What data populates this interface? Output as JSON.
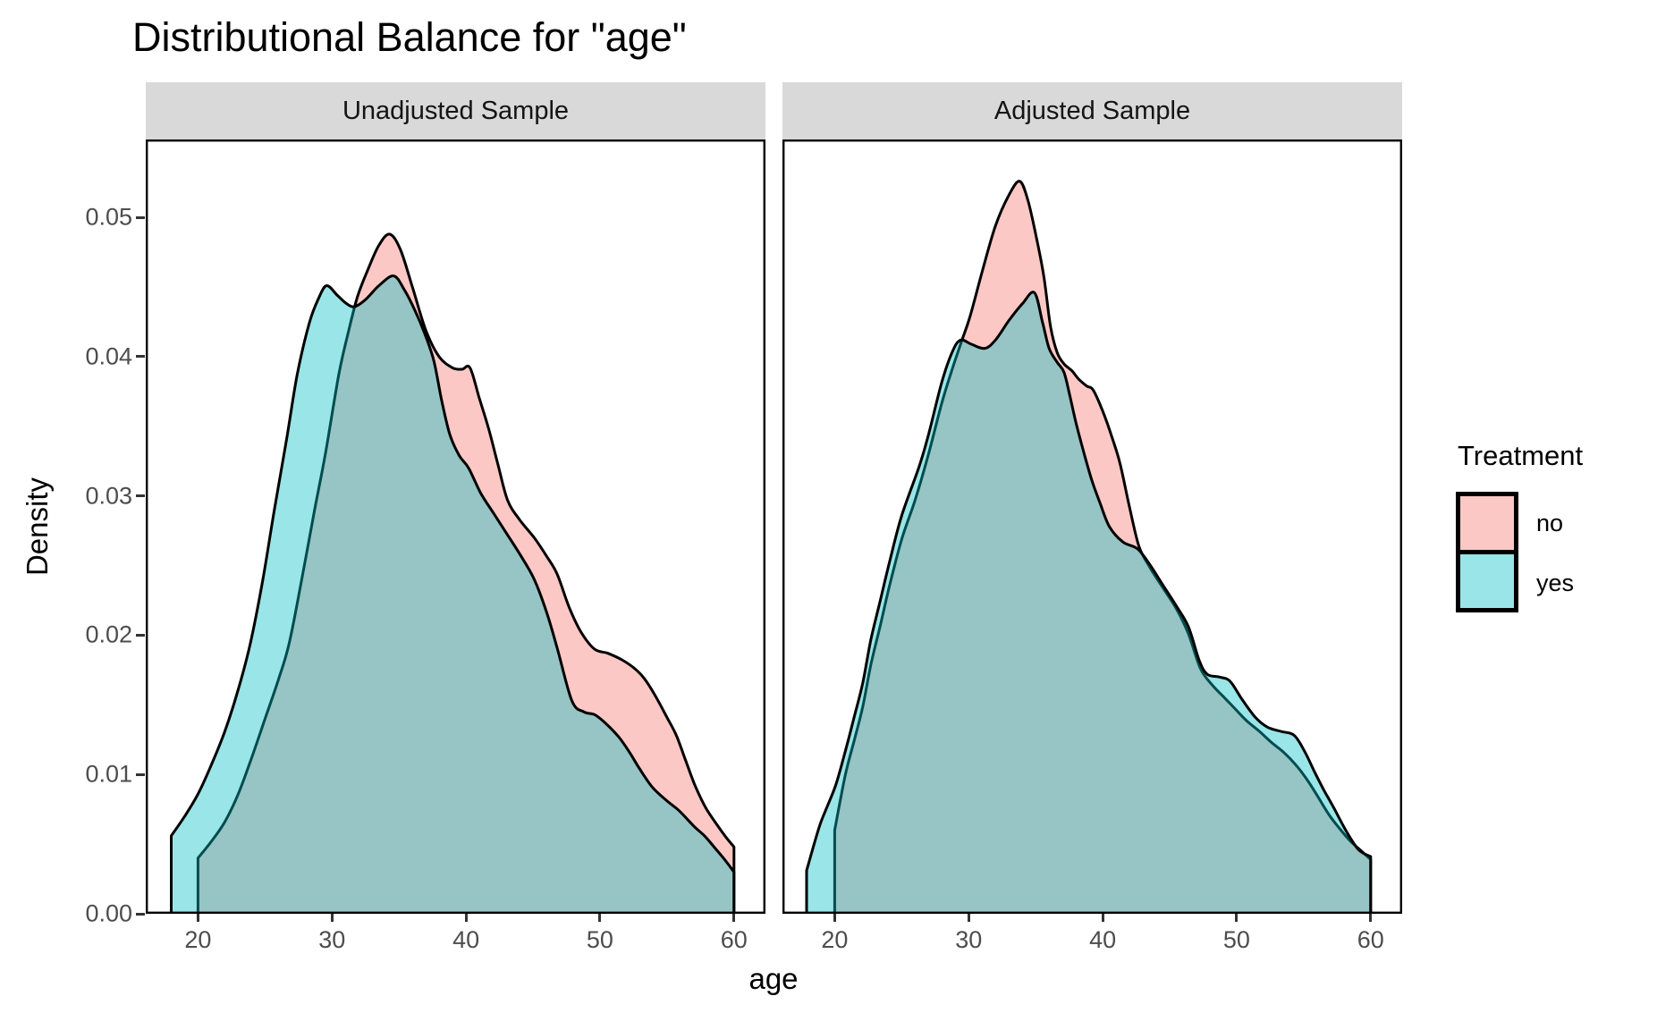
{
  "title": "Distributional Balance for \"age\"",
  "axes": {
    "x_label": "age",
    "y_label": "Density"
  },
  "legend": {
    "title": "Treatment",
    "items": [
      {
        "label": "no",
        "color": "#F8766D"
      },
      {
        "label": "yes",
        "color": "#00BFC4"
      }
    ]
  },
  "style": {
    "stroke_color": "#000000",
    "fill_alpha": 0.4,
    "strip_background": "#D9D9D9",
    "tick_text_color": "#4D4D4D",
    "panel_border_color": "#000000"
  },
  "chart_data": {
    "type": "area",
    "title": "Distributional Balance for \"age\"",
    "xlabel": "age",
    "ylabel": "Density",
    "grid": "off",
    "legend_position": "right",
    "xlim": [
      16.1,
      62.35
    ],
    "ylim": [
      0,
      0.0556
    ],
    "x_ticks": [
      20,
      30,
      40,
      50,
      60
    ],
    "y_ticks": [
      0,
      0.01,
      0.02,
      0.03,
      0.04,
      0.05
    ],
    "y_tick_labels": [
      "0.00",
      "0.01",
      "0.02",
      "0.03",
      "0.04",
      "0.05"
    ],
    "facets": [
      {
        "label": "Unadjusted Sample",
        "series": [
          {
            "name": "no",
            "color": "#F8766D",
            "points": [
              [
                20,
                0.004
              ],
              [
                21,
                0.0052
              ],
              [
                22,
                0.0066
              ],
              [
                23,
                0.0086
              ],
              [
                24,
                0.0112
              ],
              [
                25,
                0.014
              ],
              [
                26,
                0.0168
              ],
              [
                26.8,
                0.0194
              ],
              [
                27.7,
                0.0238
              ],
              [
                28.7,
                0.029
              ],
              [
                29.5,
                0.033
              ],
              [
                30.5,
                0.0387
              ],
              [
                31.2,
                0.0417
              ],
              [
                31.9,
                0.0443
              ],
              [
                32.7,
                0.0463
              ],
              [
                33.5,
                0.048
              ],
              [
                34.3,
                0.0488
              ],
              [
                35.1,
                0.0477
              ],
              [
                36,
                0.045
              ],
              [
                37,
                0.0419
              ],
              [
                38,
                0.04
              ],
              [
                39,
                0.0392
              ],
              [
                39.7,
                0.0391
              ],
              [
                40.3,
                0.0392
              ],
              [
                41,
                0.037
              ],
              [
                41.7,
                0.0348
              ],
              [
                42.4,
                0.0322
              ],
              [
                43.1,
                0.0297
              ],
              [
                44,
                0.0283
              ],
              [
                45.1,
                0.027
              ],
              [
                46,
                0.0257
              ],
              [
                46.8,
                0.0244
              ],
              [
                47.7,
                0.022
              ],
              [
                48.6,
                0.0202
              ],
              [
                49.6,
                0.019
              ],
              [
                50.6,
                0.0187
              ],
              [
                51.7,
                0.0182
              ],
              [
                52.6,
                0.0176
              ],
              [
                53.3,
                0.0169
              ],
              [
                54.1,
                0.0157
              ],
              [
                55,
                0.0141
              ],
              [
                55.7,
                0.0128
              ],
              [
                56.4,
                0.011
              ],
              [
                57.1,
                0.0092
              ],
              [
                57.9,
                0.0076
              ],
              [
                58.8,
                0.0063
              ],
              [
                59.4,
                0.0055
              ],
              [
                60,
                0.0048
              ]
            ]
          },
          {
            "name": "yes",
            "color": "#00BFC4",
            "points": [
              [
                18,
                0.0056
              ],
              [
                19,
                0.007
              ],
              [
                20,
                0.0086
              ],
              [
                21,
                0.0107
              ],
              [
                22,
                0.0131
              ],
              [
                23,
                0.0161
              ],
              [
                23.9,
                0.0194
              ],
              [
                24.8,
                0.0238
              ],
              [
                25.7,
                0.029
              ],
              [
                26.6,
                0.034
              ],
              [
                27.4,
                0.0387
              ],
              [
                28.3,
                0.0424
              ],
              [
                29,
                0.0442
              ],
              [
                29.6,
                0.0451
              ],
              [
                30.4,
                0.0444
              ],
              [
                31.1,
                0.0438
              ],
              [
                31.7,
                0.0436
              ],
              [
                32.5,
                0.0441
              ],
              [
                33.5,
                0.0451
              ],
              [
                34.6,
                0.0458
              ],
              [
                35.4,
                0.0448
              ],
              [
                36.2,
                0.0433
              ],
              [
                36.9,
                0.0417
              ],
              [
                37.6,
                0.0397
              ],
              [
                38.2,
                0.0368
              ],
              [
                38.8,
                0.0344
              ],
              [
                39.5,
                0.0329
              ],
              [
                40.2,
                0.032
              ],
              [
                41.1,
                0.0302
              ],
              [
                42.1,
                0.0287
              ],
              [
                43.1,
                0.0272
              ],
              [
                44.1,
                0.0257
              ],
              [
                45.1,
                0.024
              ],
              [
                46,
                0.0217
              ],
              [
                46.8,
                0.0191
              ],
              [
                47.9,
                0.0153
              ],
              [
                48.8,
                0.0145
              ],
              [
                49.6,
                0.0143
              ],
              [
                50.4,
                0.0137
              ],
              [
                51.4,
                0.0127
              ],
              [
                52.2,
                0.0116
              ],
              [
                52.9,
                0.0105
              ],
              [
                53.9,
                0.0091
              ],
              [
                55,
                0.0081
              ],
              [
                55.9,
                0.0074
              ],
              [
                57,
                0.0063
              ],
              [
                57.8,
                0.0056
              ],
              [
                58.6,
                0.0047
              ],
              [
                59.3,
                0.0039
              ],
              [
                60,
                0.003
              ]
            ]
          }
        ]
      },
      {
        "label": "Adjusted Sample",
        "series": [
          {
            "name": "no",
            "color": "#F8766D",
            "points": [
              [
                20,
                0.006
              ],
              [
                20.8,
                0.01
              ],
              [
                21.5,
                0.0126
              ],
              [
                22.1,
                0.0149
              ],
              [
                22.7,
                0.0179
              ],
              [
                23.4,
                0.0207
              ],
              [
                24.1,
                0.0236
              ],
              [
                25,
                0.0269
              ],
              [
                26,
                0.0297
              ],
              [
                27,
                0.033
              ],
              [
                28,
                0.0367
              ],
              [
                28.8,
                0.0392
              ],
              [
                29.5,
                0.0412
              ],
              [
                30.1,
                0.0429
              ],
              [
                31,
                0.0461
              ],
              [
                32,
                0.0494
              ],
              [
                33,
                0.0516
              ],
              [
                33.8,
                0.0526
              ],
              [
                34.4,
                0.0513
              ],
              [
                35,
                0.0488
              ],
              [
                35.6,
                0.0458
              ],
              [
                36.1,
                0.0422
              ],
              [
                36.6,
                0.0403
              ],
              [
                37.1,
                0.0395
              ],
              [
                37.7,
                0.039
              ],
              [
                38.2,
                0.0384
              ],
              [
                38.8,
                0.0379
              ],
              [
                39.3,
                0.0376
              ],
              [
                40,
                0.0361
              ],
              [
                40.7,
                0.0342
              ],
              [
                41.3,
                0.0323
              ],
              [
                42,
                0.0292
              ],
              [
                42.7,
                0.0264
              ],
              [
                43.5,
                0.0249
              ],
              [
                44.5,
                0.0234
              ],
              [
                45.5,
                0.0219
              ],
              [
                46.4,
                0.0201
              ],
              [
                47.3,
                0.0176
              ],
              [
                48.2,
                0.0164
              ],
              [
                49,
                0.0156
              ],
              [
                49.8,
                0.0148
              ],
              [
                50.7,
                0.0139
              ],
              [
                51.7,
                0.0131
              ],
              [
                52.6,
                0.0123
              ],
              [
                53.5,
                0.0116
              ],
              [
                54.4,
                0.0107
              ],
              [
                55.2,
                0.0097
              ],
              [
                56,
                0.0085
              ],
              [
                56.9,
                0.0071
              ],
              [
                57.7,
                0.0061
              ],
              [
                58.5,
                0.0052
              ],
              [
                59.2,
                0.0046
              ],
              [
                60,
                0.0039
              ]
            ]
          },
          {
            "name": "yes",
            "color": "#00BFC4",
            "points": [
              [
                17.9,
                0.0031
              ],
              [
                18.4,
                0.0048
              ],
              [
                18.9,
                0.0064
              ],
              [
                19.4,
                0.0076
              ],
              [
                20.1,
                0.0093
              ],
              [
                20.8,
                0.0117
              ],
              [
                21.5,
                0.0143
              ],
              [
                22.1,
                0.0166
              ],
              [
                22.7,
                0.0197
              ],
              [
                23.4,
                0.0225
              ],
              [
                24.1,
                0.0253
              ],
              [
                25,
                0.0286
              ],
              [
                26.3,
                0.0321
              ],
              [
                27,
                0.0344
              ],
              [
                28,
                0.0382
              ],
              [
                28.8,
                0.0404
              ],
              [
                29.4,
                0.0412
              ],
              [
                30.2,
                0.0409
              ],
              [
                31.2,
                0.0406
              ],
              [
                32,
                0.0412
              ],
              [
                33,
                0.0426
              ],
              [
                34,
                0.0438
              ],
              [
                34.9,
                0.0446
              ],
              [
                35.5,
                0.0425
              ],
              [
                36,
                0.0406
              ],
              [
                36.6,
                0.0396
              ],
              [
                37.1,
                0.0389
              ],
              [
                37.5,
                0.0374
              ],
              [
                38,
                0.0353
              ],
              [
                38.6,
                0.0331
              ],
              [
                39.2,
                0.0311
              ],
              [
                39.8,
                0.0295
              ],
              [
                40.5,
                0.0278
              ],
              [
                41.5,
                0.0267
              ],
              [
                42.6,
                0.0262
              ],
              [
                43.5,
                0.0251
              ],
              [
                44.5,
                0.0236
              ],
              [
                45.5,
                0.0221
              ],
              [
                46.4,
                0.0206
              ],
              [
                47.2,
                0.0182
              ],
              [
                47.8,
                0.0172
              ],
              [
                48.7,
                0.017
              ],
              [
                49.5,
                0.0167
              ],
              [
                50.4,
                0.0154
              ],
              [
                51.4,
                0.0141
              ],
              [
                52.3,
                0.0134
              ],
              [
                53.3,
                0.0131
              ],
              [
                54.3,
                0.0128
              ],
              [
                55.1,
                0.0116
              ],
              [
                55.8,
                0.0102
              ],
              [
                56.5,
                0.0089
              ],
              [
                57.2,
                0.0077
              ],
              [
                58.2,
                0.0059
              ],
              [
                59.1,
                0.0046
              ],
              [
                60,
                0.0041
              ]
            ]
          }
        ]
      }
    ]
  }
}
